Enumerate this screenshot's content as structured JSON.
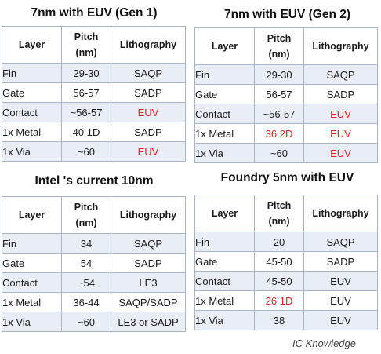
{
  "panels": [
    {
      "title": "7nm with EUV (Gen 1)",
      "headers": [
        "Layer",
        "Pitch (nm)",
        "Lithography"
      ],
      "rows": [
        {
          "layer": "Fin",
          "pitch": "29-30",
          "litho": "SAQP",
          "pitch_red": false,
          "litho_red": false
        },
        {
          "layer": "Gate",
          "pitch": "56-57",
          "litho": "SADP",
          "pitch_red": false,
          "litho_red": false
        },
        {
          "layer": "Contact",
          "pitch": "~56-57",
          "litho": "EUV",
          "pitch_red": false,
          "litho_red": true
        },
        {
          "layer": "1x Metal",
          "pitch": "40 1D",
          "litho": "SADP",
          "pitch_red": false,
          "litho_red": false
        },
        {
          "layer": "1x Via",
          "pitch": "~60",
          "litho": "EUV",
          "pitch_red": false,
          "litho_red": true
        }
      ]
    },
    {
      "title": "7nm with EUV (Gen 2)",
      "headers": [
        "Layer",
        "Pitch (nm)",
        "Lithography"
      ],
      "rows": [
        {
          "layer": "Fin",
          "pitch": "29-30",
          "litho": "SAQP",
          "pitch_red": false,
          "litho_red": false
        },
        {
          "layer": "Gate",
          "pitch": "56-57",
          "litho": "SADP",
          "pitch_red": false,
          "litho_red": false
        },
        {
          "layer": "Contact",
          "pitch": "~56-57",
          "litho": "EUV",
          "pitch_red": false,
          "litho_red": true
        },
        {
          "layer": "1x Metal",
          "pitch": "36 2D",
          "litho": "EUV",
          "pitch_red": true,
          "litho_red": true
        },
        {
          "layer": "1x Via",
          "pitch": "~60",
          "litho": "EUV",
          "pitch_red": false,
          "litho_red": true
        }
      ]
    },
    {
      "title": "Intel 's current 10nm",
      "headers": [
        "Layer",
        "Pitch (nm)",
        "Lithography"
      ],
      "rows": [
        {
          "layer": "Fin",
          "pitch": "34",
          "litho": "SAQP",
          "pitch_red": false,
          "litho_red": false
        },
        {
          "layer": "Gate",
          "pitch": "54",
          "litho": "SADP",
          "pitch_red": false,
          "litho_red": false
        },
        {
          "layer": "Contact",
          "pitch": "~54",
          "litho": "LE3",
          "pitch_red": false,
          "litho_red": false
        },
        {
          "layer": "1x Metal",
          "pitch": "36-44",
          "litho": "SAQP/SADP",
          "pitch_red": false,
          "litho_red": false
        },
        {
          "layer": "1x Via",
          "pitch": "~60",
          "litho": "LE3 or SADP",
          "pitch_red": false,
          "litho_red": false
        }
      ]
    },
    {
      "title": "Foundry 5nm with EUV",
      "headers": [
        "Layer",
        "Pitch (nm)",
        "Lithography"
      ],
      "rows": [
        {
          "layer": "Fin",
          "pitch": "20",
          "litho": "SAQP",
          "pitch_red": false,
          "litho_red": false
        },
        {
          "layer": "Gate",
          "pitch": "45-50",
          "litho": "SADP",
          "pitch_red": false,
          "litho_red": false
        },
        {
          "layer": "Contact",
          "pitch": "45-50",
          "litho": "EUV",
          "pitch_red": false,
          "litho_red": false
        },
        {
          "layer": "1x Metal",
          "pitch": "26 1D",
          "litho": "EUV",
          "pitch_red": true,
          "litho_red": false
        },
        {
          "layer": "1x Via",
          "pitch": "38",
          "litho": "EUV",
          "pitch_red": false,
          "litho_red": false
        }
      ]
    }
  ],
  "credit": "IC Knowledge",
  "colors": {
    "highlight": "#ee1c1c",
    "band": "#e9edf5",
    "border": "#a8b4c8"
  }
}
